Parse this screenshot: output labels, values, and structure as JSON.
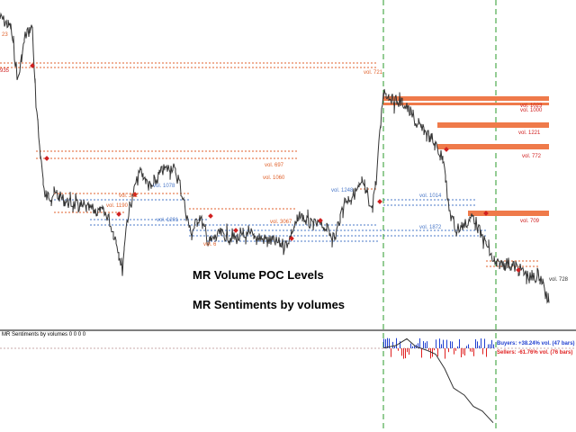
{
  "overlay": {
    "title_poc": "MR Volume POC Levels",
    "title_sentiment": "MR Sentiments by volumes"
  },
  "indicator": {
    "short_name": "MR Sentiments by volumes 0 0 0 0",
    "buyers_text": "Buyers: +38.24% vol. (47 bars)",
    "sellers_text": "Sellers: -61.76% vol. (76 bars)"
  },
  "colors": {
    "price": "#333333",
    "poc_orange": "#e0622c",
    "poc_red": "#d12020",
    "poc_blue": "#4a78c8",
    "range_lines": "#2a9a2a",
    "buyers": "#1f3fd0",
    "sellers": "#e02020"
  },
  "price_axis_left_labels": [
    "23",
    "935"
  ],
  "volume_labels": {
    "red": [
      "vol. 1023",
      "vol. 1000",
      "vol. 1221",
      "vol. 772",
      "vol. 709"
    ],
    "orange": [
      "vol. 721",
      "vol. 697",
      "vol. 1060",
      "vol. 321",
      "vol. 1190",
      "vol. 3067",
      "vol. 6"
    ],
    "blue": [
      "vol. 1078",
      "vol. 1201",
      "vol. 1248",
      "vol. 1014",
      "vol. 1872"
    ],
    "plain": [
      "vol. 728"
    ]
  }
}
